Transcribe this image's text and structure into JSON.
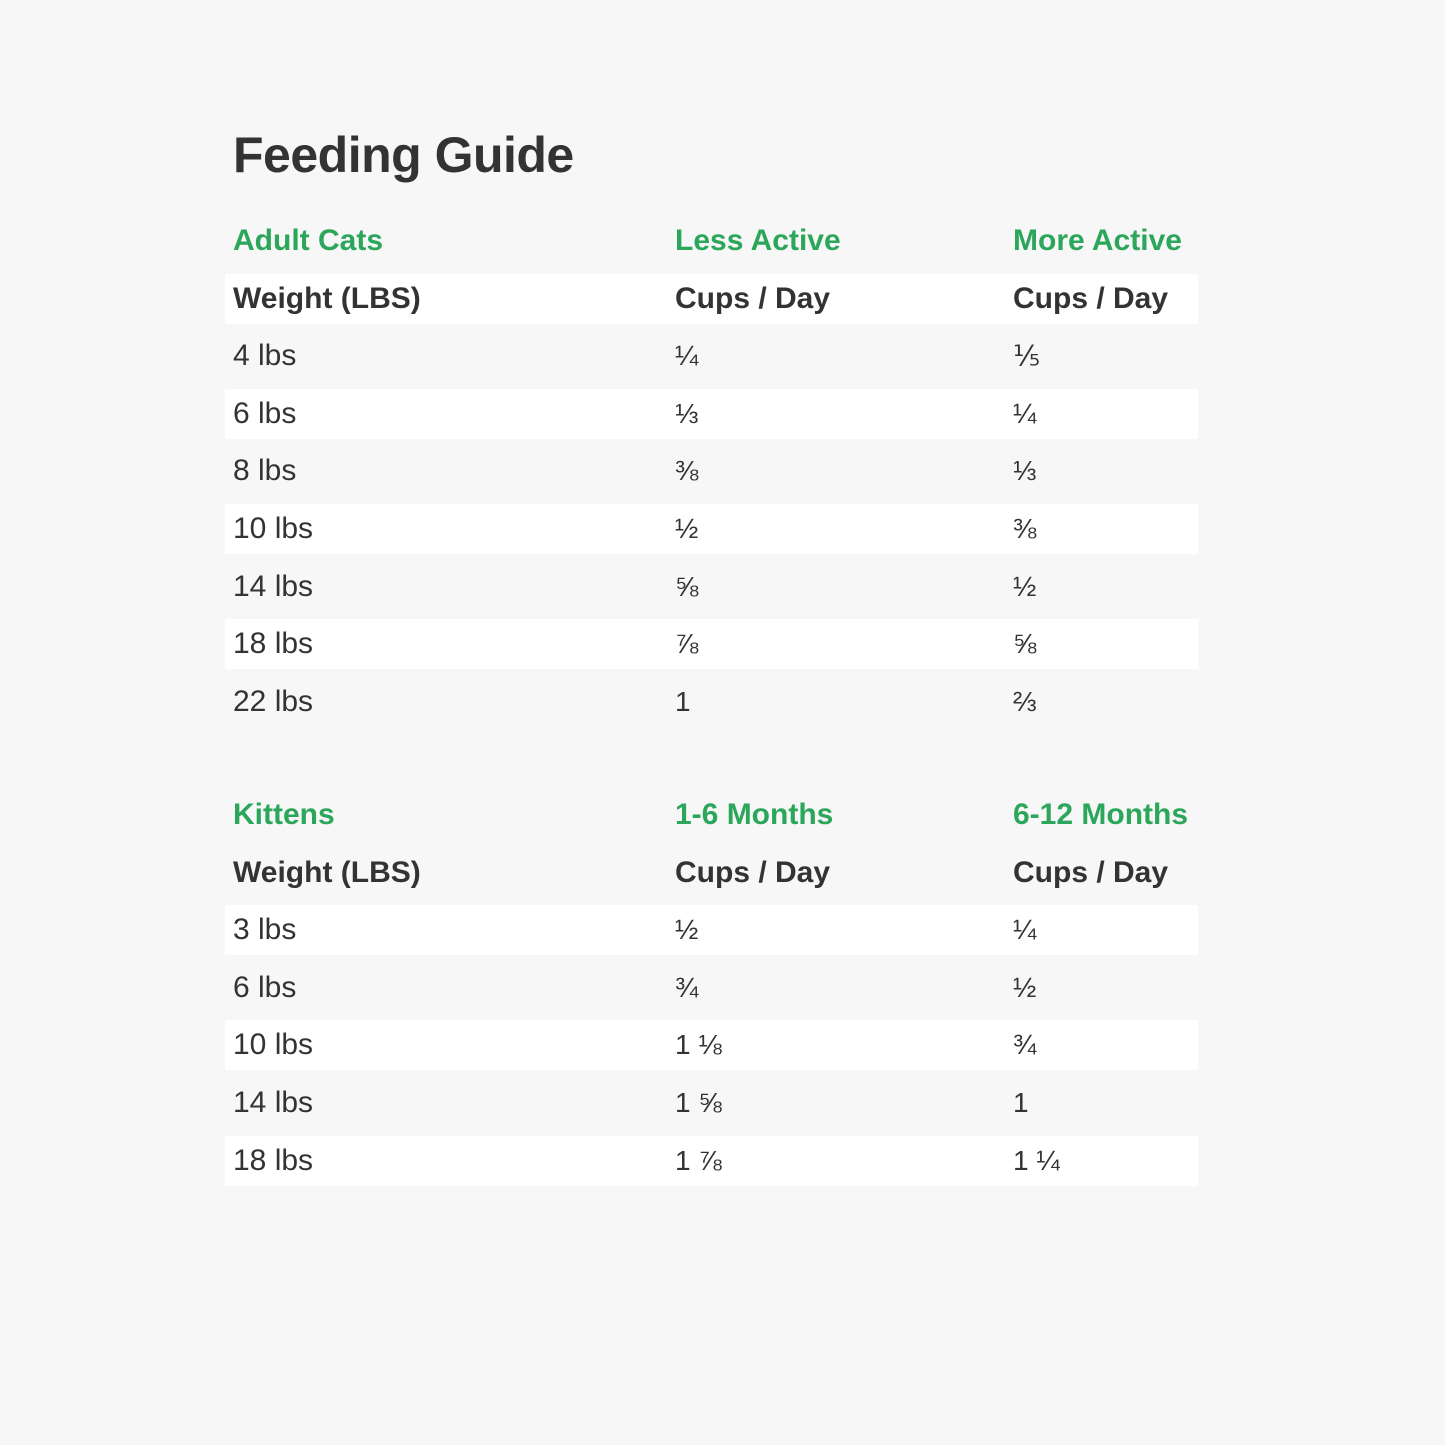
{
  "title": "Feeding Guide",
  "colors": {
    "accent": "#2ba65a",
    "text": "#333333",
    "background": "#f7f7f7",
    "row_alt": "#ffffff"
  },
  "adult": {
    "group_headers": [
      "Adult Cats",
      "Less Active",
      "More Active"
    ],
    "column_headers": [
      "Weight (LBS)",
      "Cups / Day",
      "Cups / Day"
    ],
    "rows": [
      [
        "4 lbs",
        "¼",
        "⅕"
      ],
      [
        "6 lbs",
        "⅓",
        "¼"
      ],
      [
        "8 lbs",
        "⅜",
        "⅓"
      ],
      [
        "10 lbs",
        "½",
        "⅜"
      ],
      [
        "14 lbs",
        "⅝",
        "½"
      ],
      [
        "18 lbs",
        "⅞",
        "⅝"
      ],
      [
        "22 lbs",
        "1",
        "⅔"
      ]
    ]
  },
  "kittens": {
    "group_headers": [
      "Kittens",
      "1-6 Months",
      "6-12 Months"
    ],
    "column_headers": [
      "Weight (LBS)",
      "Cups / Day",
      "Cups / Day"
    ],
    "rows": [
      [
        "3 lbs",
        "½",
        "¼"
      ],
      [
        "6 lbs",
        "¾",
        "½"
      ],
      [
        "10 lbs",
        "1 ⅛",
        "¾"
      ],
      [
        "14 lbs",
        "1 ⅝",
        "1"
      ],
      [
        "18 lbs",
        "1 ⅞",
        "1 ¼"
      ]
    ]
  }
}
